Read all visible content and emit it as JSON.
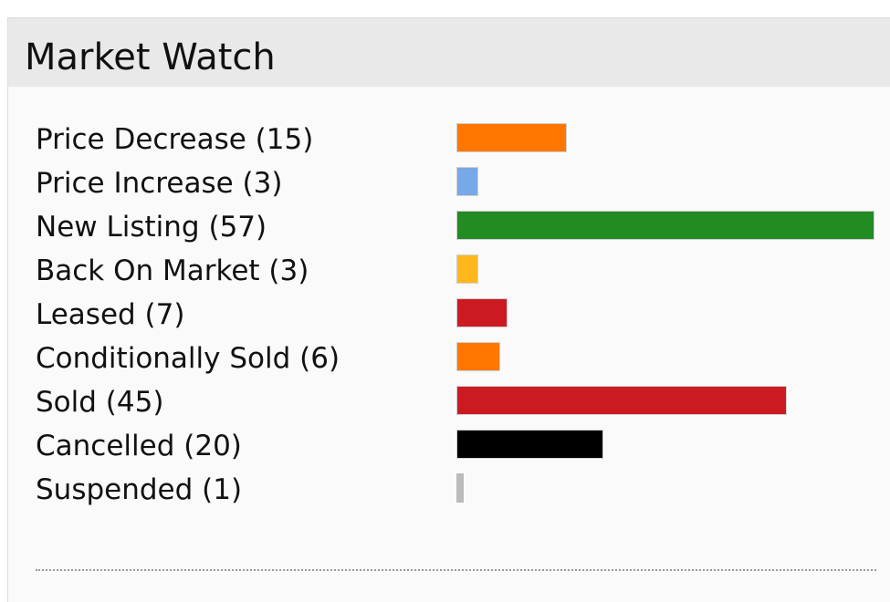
{
  "panel": {
    "title": "Market Watch"
  },
  "chart_data": {
    "type": "bar",
    "orientation": "horizontal",
    "categories": [
      "Price Decrease",
      "Price Increase",
      "New Listing",
      "Back On Market",
      "Leased",
      "Conditionally Sold",
      "Sold",
      "Cancelled",
      "Suspended"
    ],
    "values": [
      15,
      3,
      57,
      3,
      7,
      6,
      45,
      20,
      1
    ],
    "colors": [
      "#ff7700",
      "#77a8e8",
      "#228b22",
      "#ffb81c",
      "#cc1a22",
      "#ff7700",
      "#cc1a22",
      "#000000",
      "#bbbbbb"
    ],
    "xlim": [
      0,
      57
    ],
    "grid": false
  }
}
